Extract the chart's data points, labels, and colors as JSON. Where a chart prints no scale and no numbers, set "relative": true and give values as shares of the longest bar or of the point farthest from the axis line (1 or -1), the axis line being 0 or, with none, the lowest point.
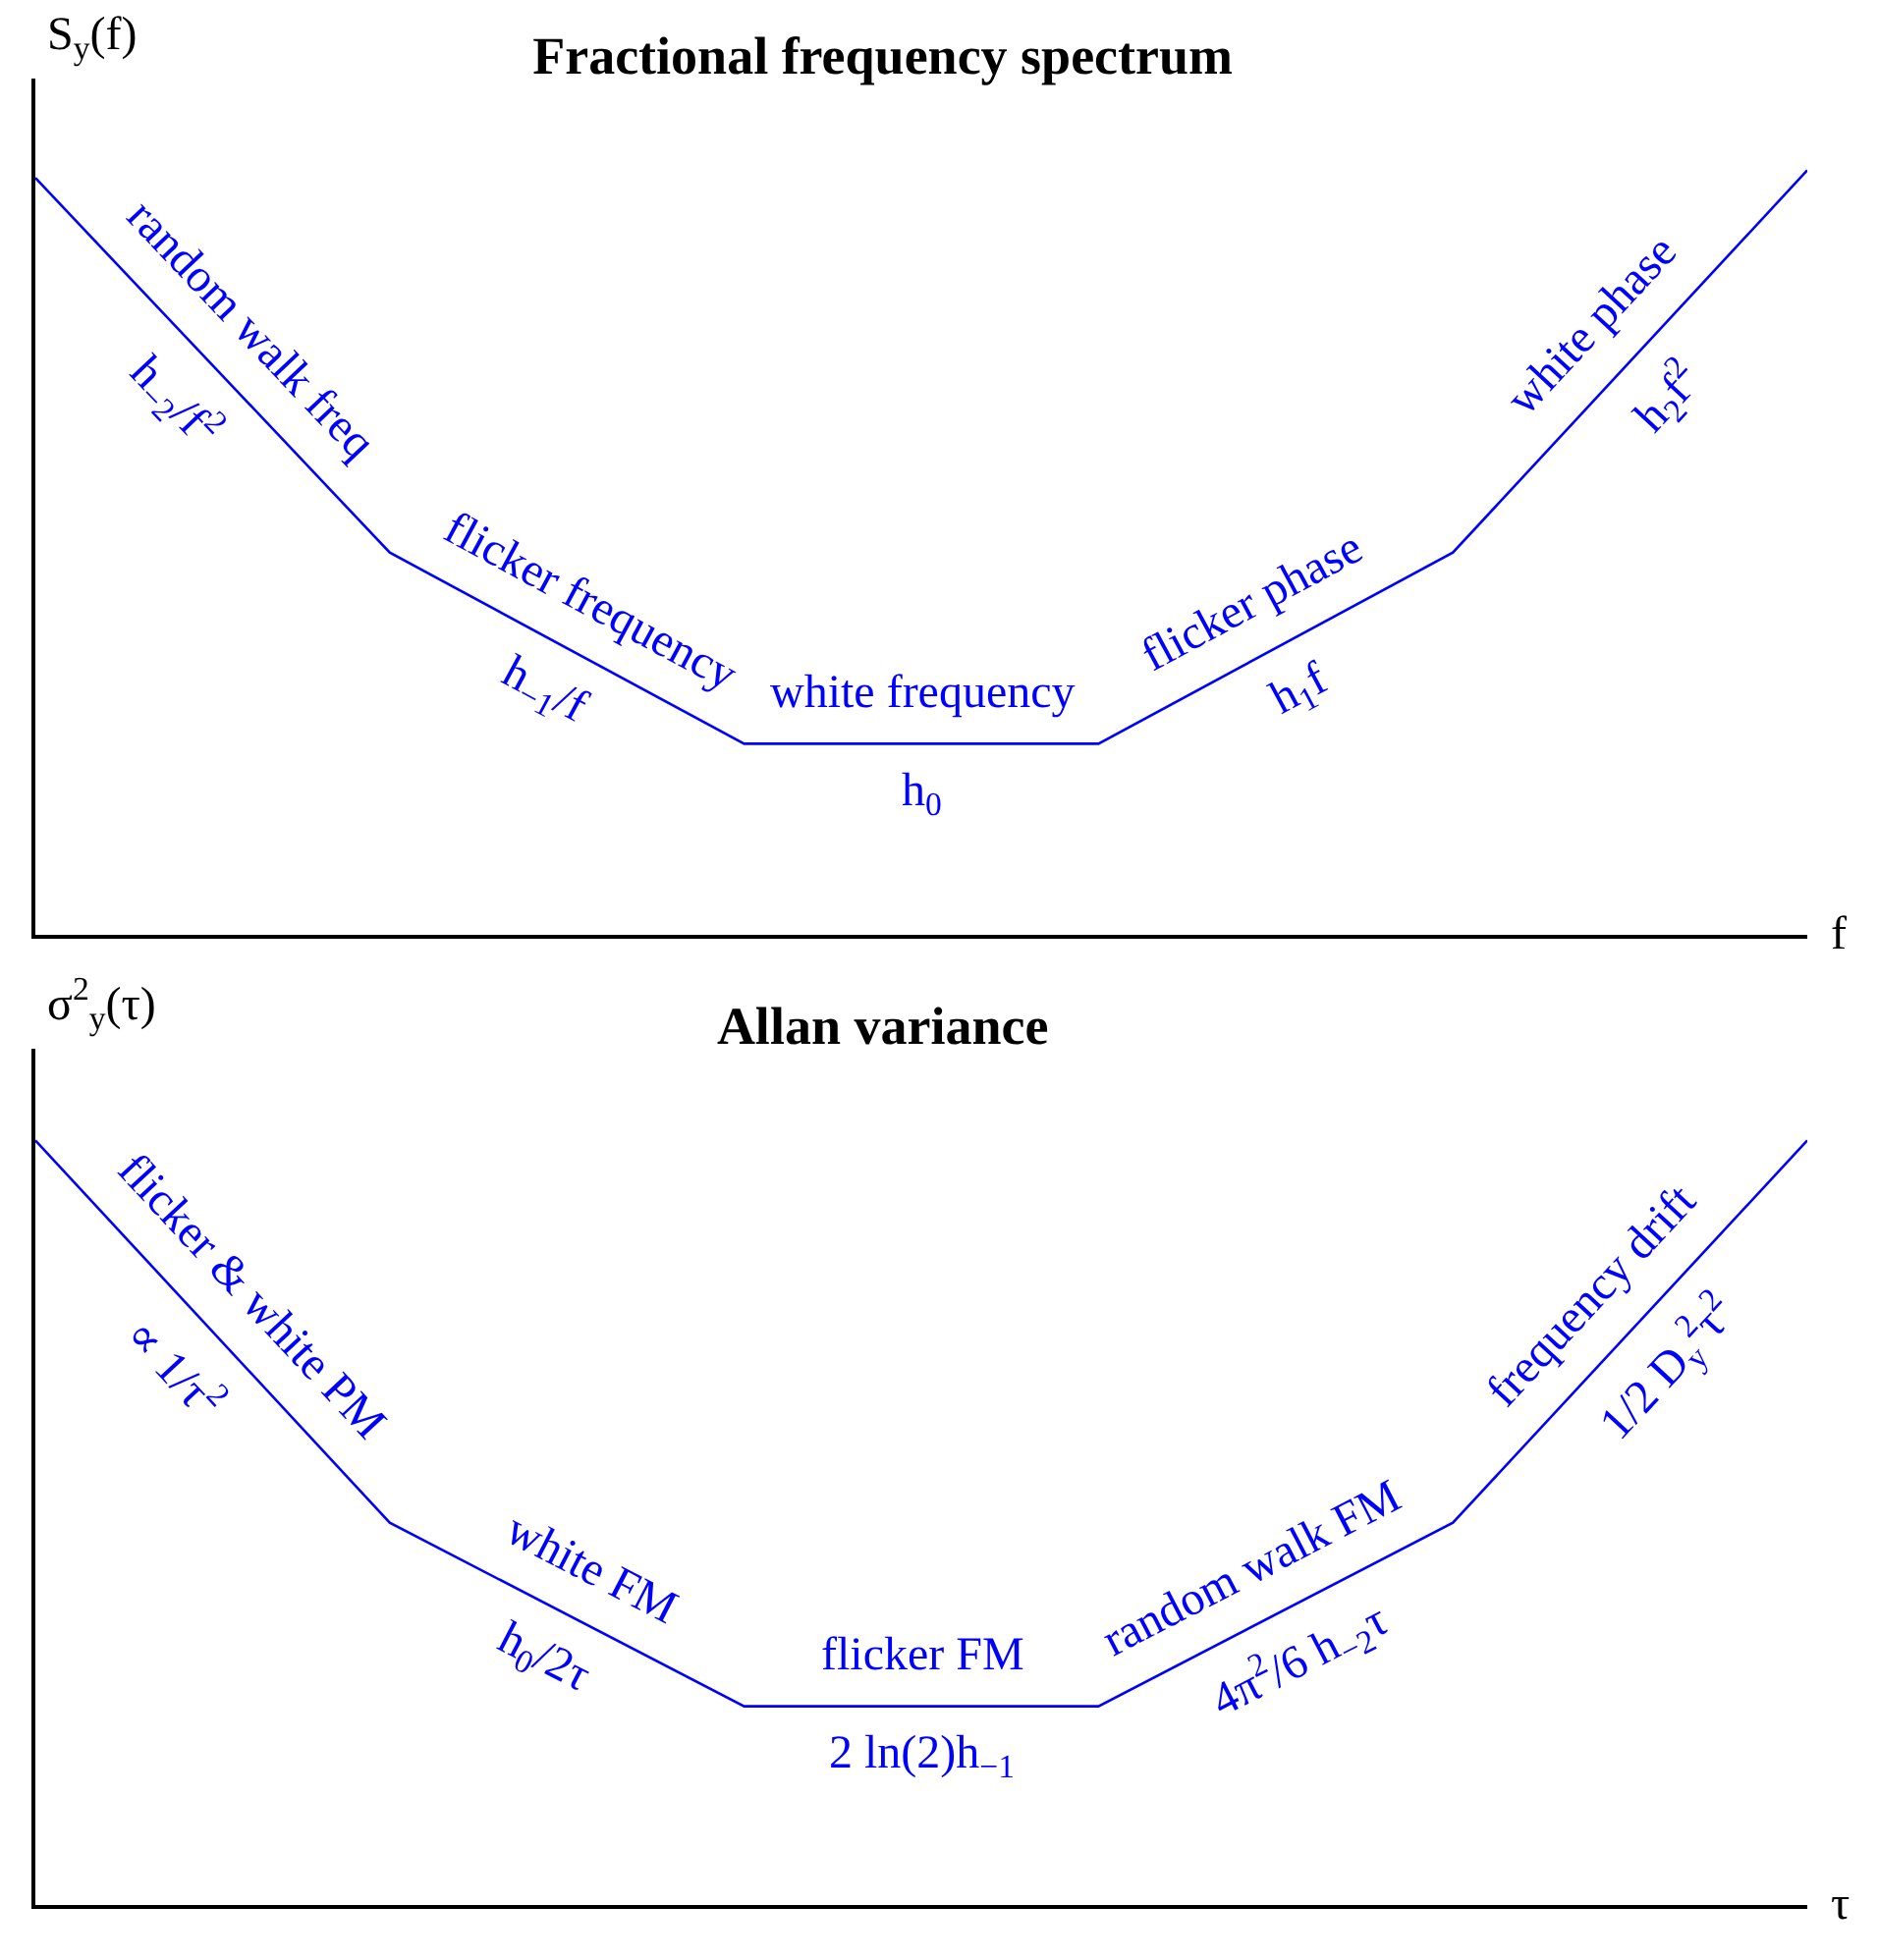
{
  "chart_data": [
    {
      "type": "line",
      "title": "Fractional frequency spectrum",
      "ylabel": "S$_{y}$(f)",
      "xlabel": "f",
      "relative": true,
      "categories": [
        null,
        null,
        null,
        null,
        null,
        null
      ],
      "grid": false,
      "marker": "none",
      "line_style": "solid",
      "series": [
        {
          "color": "#0000ff",
          "values": [
            0.99,
            0.5,
            0.25,
            0.25,
            0.5,
            1
          ]
        }
      ],
      "annotations": [
        "random walk freq",
        "h$_{−2}$/f$^{2}$",
        "flicker frequency",
        "h$_{−1}$/f",
        "white frequency",
        "h$_{0}$",
        "flicker phase",
        "h$_{1}$f",
        "white phase",
        "h$_{2}$f$^{2}$"
      ]
    },
    {
      "type": "line",
      "title": "Allan variance",
      "ylabel": "σ$^{2}$$_{y}$(τ)",
      "xlabel": "τ",
      "relative": true,
      "categories": [
        null,
        null,
        null,
        null,
        null,
        null
      ],
      "grid": false,
      "marker": "none",
      "line_style": "solid",
      "series": [
        {
          "color": "#0000ff",
          "values": [
            1,
            0.5,
            0.26,
            0.26,
            0.5,
            1
          ]
        }
      ],
      "annotations": [
        "flicker & white PM",
        "∝ 1/τ$^{2}$",
        "white FM",
        "h$_{0}$/2τ",
        "flicker FM",
        "2 ln(2)h$_{−1}$",
        "random walk FM",
        "4π$^{2}$/6 h$_{−2}$τ",
        "frequency drift",
        "1/2 D$_{y}$$^{2}$τ$^{2}$"
      ]
    }
  ]
}
